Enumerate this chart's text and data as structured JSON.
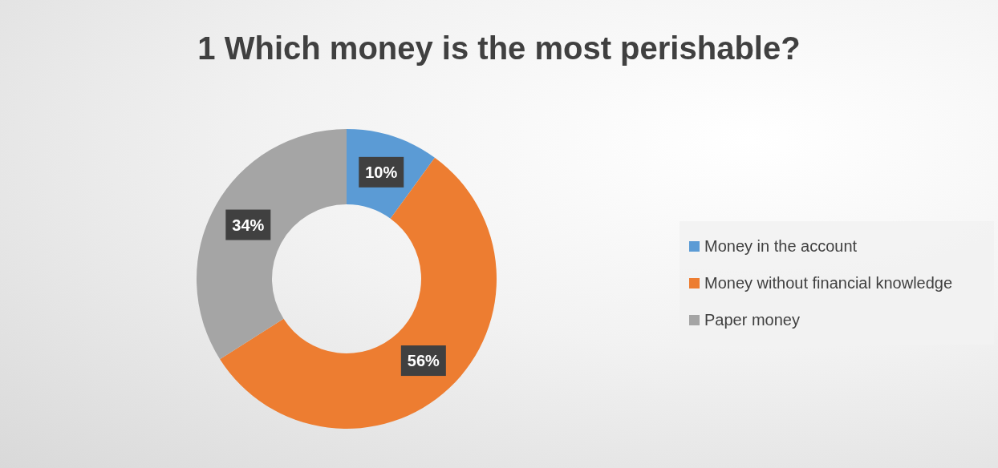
{
  "chart_data": {
    "type": "donut",
    "title": "1 Which money is the most perishable?",
    "categories": [
      "Money in the account",
      "Money without financial knowledge",
      "Paper money"
    ],
    "values": [
      10,
      56,
      34
    ],
    "colors": [
      "#5b9bd5",
      "#ed7d31",
      "#a5a5a5"
    ],
    "value_labels": [
      "10%",
      "56%",
      "34%"
    ],
    "legend": "right"
  }
}
